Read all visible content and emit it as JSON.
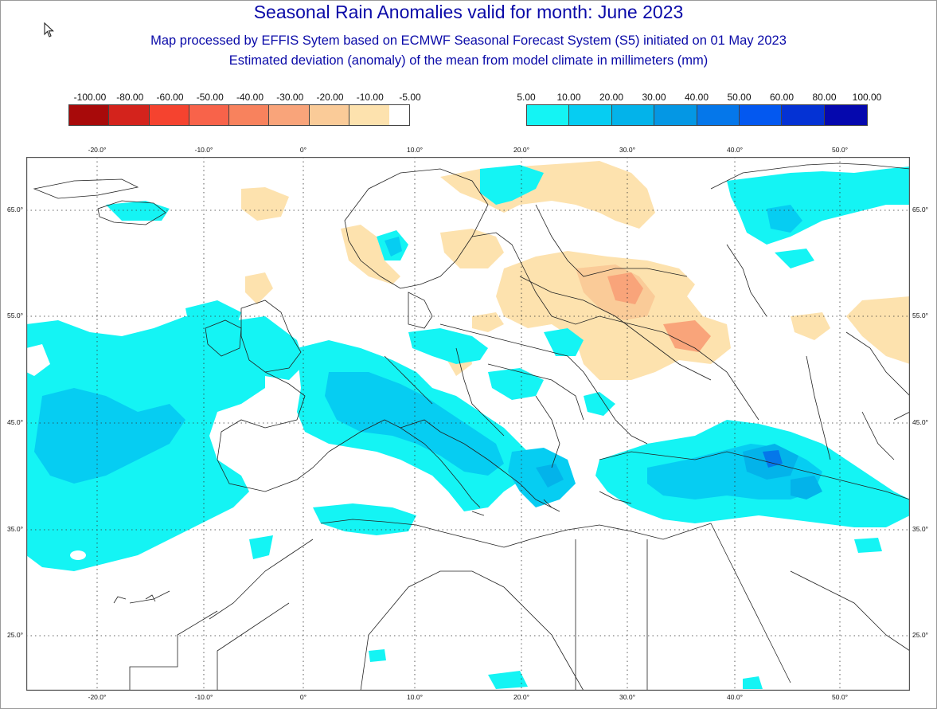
{
  "title": "Seasonal Rain Anomalies valid for month: June 2023",
  "subtitle_line1": "Map processed by EFFIS Sytem based on ECMWF Seasonal Forecast System (S5) initiated on 01 May 2023",
  "subtitle_line2": "Estimated deviation (anomaly) of the mean from model climate in millimeters (mm)",
  "legend_negative": {
    "labels": [
      "-100.00",
      "-80.00",
      "-60.00",
      "-50.00",
      "-40.00",
      "-30.00",
      "-20.00",
      "-10.00",
      "-5.00"
    ],
    "colors": [
      "#a80a0a",
      "#d4231c",
      "#f5432f",
      "#f8634a",
      "#f8825d",
      "#f9a47a",
      "#facb98",
      "#fde2ae"
    ]
  },
  "legend_positive": {
    "labels": [
      "5.00",
      "10.00",
      "20.00",
      "30.00",
      "40.00",
      "50.00",
      "60.00",
      "80.00",
      "100.00"
    ],
    "colors": [
      "#14f4f4",
      "#06cdf2",
      "#03b3ea",
      "#0497e4",
      "#0577ea",
      "#0358f0",
      "#0432d4",
      "#0508ae"
    ]
  },
  "longitude_labels": [
    "-20.0°",
    "-10.0°",
    "0°",
    "10.0°",
    "20.0°",
    "30.0°",
    "40.0°",
    "50.0°"
  ],
  "latitude_labels": [
    "65.0°",
    "55.0°",
    "45.0°",
    "35.0°",
    "25.0°"
  ],
  "map_colors": {
    "ocean": "#ffffff",
    "border": "#222222",
    "frame": "#555555",
    "wet_light": "#14f4f4",
    "wet_mid": "#06cdf2",
    "wet_strong": "#03b3ea",
    "wet_heavy": "#0577ea",
    "dry_light": "#fde2ae",
    "dry_mid": "#facb98",
    "dry_strong": "#f9a47a"
  }
}
